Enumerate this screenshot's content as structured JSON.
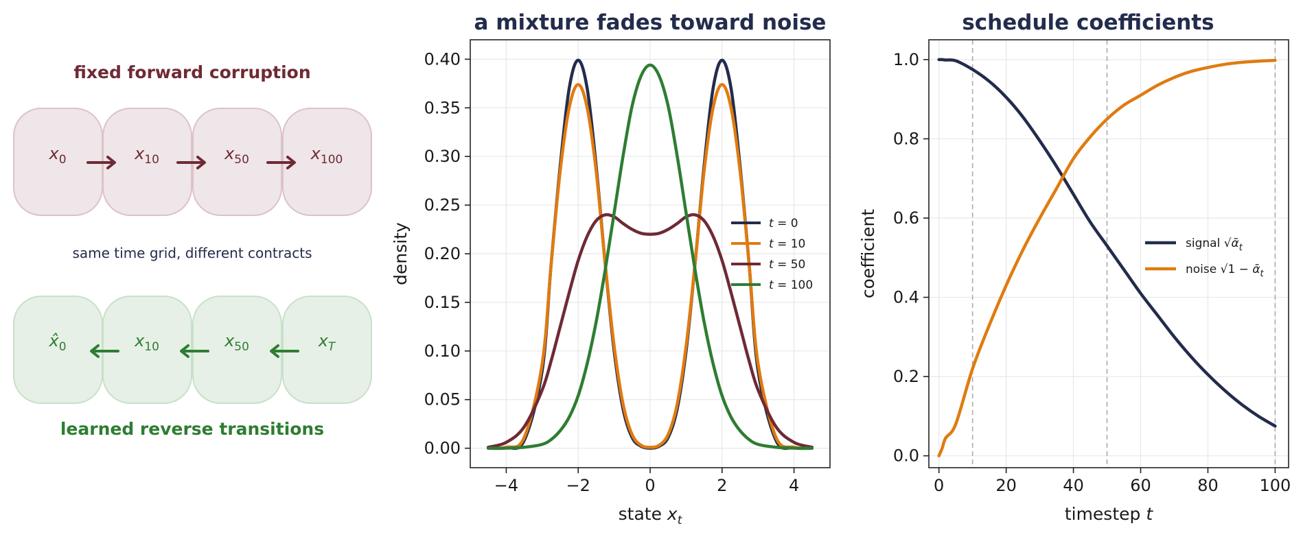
{
  "diagram": {
    "forward": {
      "title": "fixed forward corruption",
      "color": "#6f2a35",
      "fill": "#eee6e8",
      "stroke": "#dcc2c8",
      "nodes": [
        "x_0",
        "x_10",
        "x_50",
        "x_100"
      ]
    },
    "middle_caption": "same time grid, different contracts",
    "middle_color": "#232c4c",
    "reverse": {
      "title": "learned reverse transitions",
      "color": "#2e7d32",
      "fill": "#e6f0e6",
      "stroke": "#c8e0c8",
      "nodes": [
        "x̂_0",
        "x_10",
        "x_50",
        "x_T"
      ]
    }
  },
  "chart_data": [
    {
      "type": "line",
      "title": "a mixture fades toward noise",
      "xlabel": "state x_t",
      "ylabel": "density",
      "xlim": [
        -5,
        5
      ],
      "ylim": [
        -0.02,
        0.42
      ],
      "xticks": [
        -4,
        -2,
        0,
        2,
        4
      ],
      "xtick_labels": [
        "−4",
        "−2",
        "0",
        "2",
        "4"
      ],
      "yticks": [
        0,
        0.05,
        0.1,
        0.15,
        0.2,
        0.25,
        0.3,
        0.35,
        0.4
      ],
      "ytick_labels": [
        "0.00",
        "0.05",
        "0.10",
        "0.15",
        "0.20",
        "0.25",
        "0.30",
        "0.35",
        "0.40"
      ],
      "grid": true,
      "legend": "center-right",
      "x": [
        -4.5,
        -4.0,
        -3.5,
        -3.0,
        -2.75,
        -2.5,
        -2.25,
        -2.0,
        -1.75,
        -1.5,
        -1.25,
        -1.0,
        -0.75,
        -0.5,
        -0.25,
        0.0,
        0.25,
        0.5,
        0.75,
        1.0,
        1.25,
        1.5,
        1.75,
        2.0,
        2.25,
        2.5,
        2.75,
        3.0,
        3.5,
        4.0,
        4.5
      ],
      "series": [
        {
          "name": "t = 0",
          "color": "#232c4c",
          "values": [
            0.0,
            0.0005,
            0.008,
            0.08,
            0.19,
            0.29,
            0.37,
            0.399,
            0.37,
            0.29,
            0.19,
            0.1,
            0.04,
            0.011,
            0.002,
            0.0,
            0.002,
            0.011,
            0.04,
            0.1,
            0.19,
            0.29,
            0.37,
            0.399,
            0.37,
            0.29,
            0.19,
            0.08,
            0.008,
            0.0005,
            0.0
          ]
        },
        {
          "name": "t = 10",
          "color": "#e07b10",
          "values": [
            0.0,
            0.001,
            0.011,
            0.087,
            0.19,
            0.285,
            0.35,
            0.374,
            0.35,
            0.285,
            0.19,
            0.105,
            0.045,
            0.014,
            0.003,
            0.001,
            0.003,
            0.014,
            0.045,
            0.105,
            0.19,
            0.285,
            0.35,
            0.374,
            0.35,
            0.285,
            0.19,
            0.087,
            0.011,
            0.001,
            0.0
          ]
        },
        {
          "name": "t = 50",
          "color": "#6f2a35",
          "values": [
            0.001,
            0.006,
            0.022,
            0.06,
            0.09,
            0.125,
            0.16,
            0.193,
            0.218,
            0.234,
            0.24,
            0.238,
            0.231,
            0.225,
            0.221,
            0.22,
            0.221,
            0.225,
            0.231,
            0.238,
            0.24,
            0.234,
            0.218,
            0.193,
            0.16,
            0.125,
            0.09,
            0.06,
            0.022,
            0.006,
            0.001
          ]
        },
        {
          "name": "t = 100",
          "color": "#2e7d32",
          "values": [
            0.0,
            0.0001,
            0.001,
            0.004,
            0.009,
            0.018,
            0.032,
            0.054,
            0.087,
            0.13,
            0.183,
            0.242,
            0.301,
            0.352,
            0.383,
            0.394,
            0.383,
            0.352,
            0.301,
            0.242,
            0.183,
            0.13,
            0.087,
            0.054,
            0.032,
            0.018,
            0.009,
            0.004,
            0.001,
            0.0001,
            0.0
          ]
        }
      ]
    },
    {
      "type": "line",
      "title": "schedule coefficients",
      "xlabel": "timestep t",
      "ylabel": "coefficient",
      "xlim": [
        -3,
        104
      ],
      "ylim": [
        -0.03,
        1.05
      ],
      "xticks": [
        0,
        20,
        40,
        60,
        80,
        100
      ],
      "xtick_labels": [
        "0",
        "20",
        "40",
        "60",
        "80",
        "100"
      ],
      "yticks": [
        0,
        0.2,
        0.4,
        0.6,
        0.8,
        1.0
      ],
      "ytick_labels": [
        "0.0",
        "0.2",
        "0.4",
        "0.6",
        "0.8",
        "1.0"
      ],
      "grid": true,
      "legend": "center-right",
      "vlines": [
        10,
        50,
        100
      ],
      "x": [
        0,
        1,
        2,
        5,
        10,
        15,
        20,
        25,
        30,
        35,
        40,
        45,
        50,
        55,
        60,
        65,
        70,
        75,
        80,
        85,
        90,
        95,
        100
      ],
      "series": [
        {
          "name": "signal √ᾱ_t",
          "color": "#232c4c",
          "values": [
            1.0,
            1.0,
            0.999,
            0.997,
            0.975,
            0.945,
            0.905,
            0.855,
            0.795,
            0.73,
            0.66,
            0.59,
            0.53,
            0.47,
            0.41,
            0.355,
            0.3,
            0.25,
            0.205,
            0.165,
            0.13,
            0.1,
            0.075
          ]
        },
        {
          "name": "noise √(1 − ᾱ_t)",
          "color": "#e07b10",
          "values": [
            0.0,
            0.02,
            0.045,
            0.08,
            0.22,
            0.33,
            0.43,
            0.52,
            0.6,
            0.675,
            0.75,
            0.805,
            0.85,
            0.885,
            0.91,
            0.935,
            0.955,
            0.97,
            0.98,
            0.988,
            0.993,
            0.996,
            0.998
          ]
        }
      ]
    }
  ]
}
